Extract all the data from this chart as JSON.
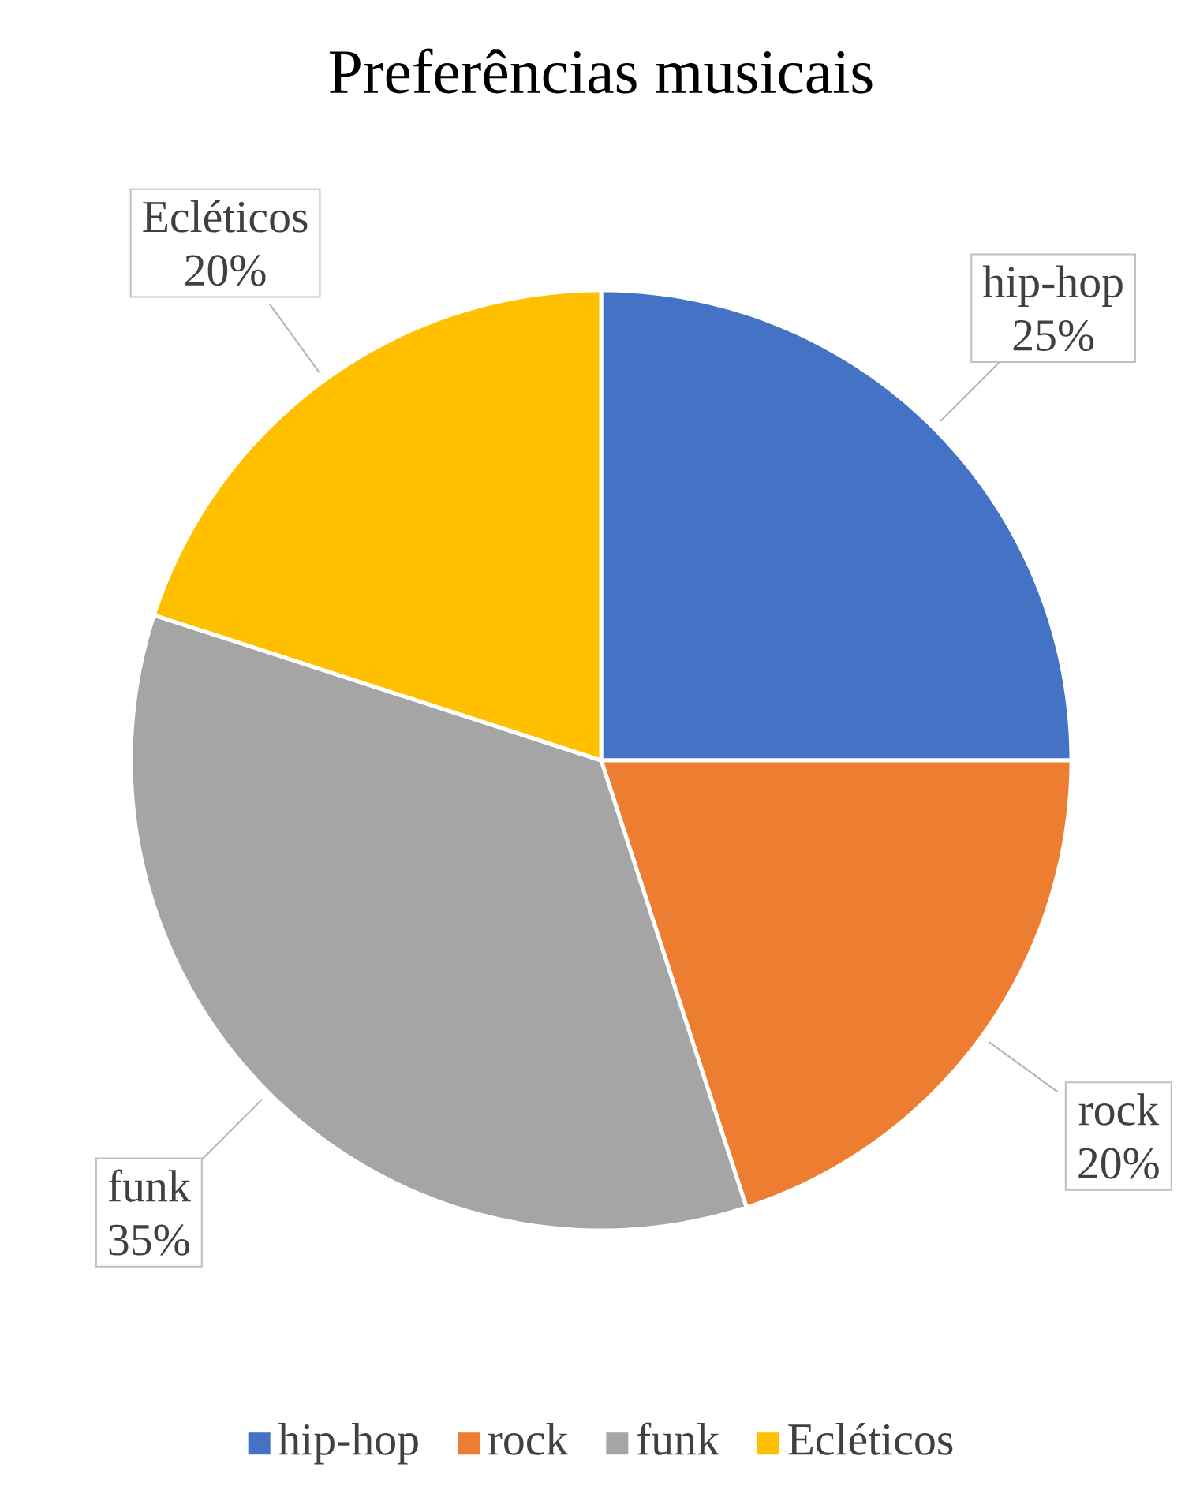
{
  "chart_data": {
    "type": "pie",
    "title": "Preferências musicais",
    "categories": [
      "hip-hop",
      "rock",
      "funk",
      "Ecléticos"
    ],
    "values": [
      25,
      20,
      35,
      20
    ],
    "value_labels": [
      "25%",
      "20%",
      "35%",
      "20%"
    ],
    "colors": [
      "#4472c4",
      "#ed7d31",
      "#a5a5a5",
      "#ffc000"
    ],
    "legend": "bottom"
  }
}
